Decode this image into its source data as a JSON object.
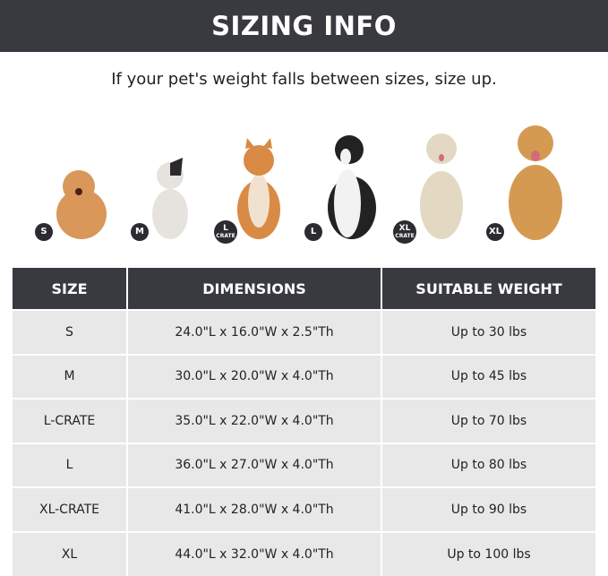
{
  "title": "SIZING INFO",
  "note": "If your pet's weight falls between sizes, size up.",
  "dogs": [
    {
      "badge": "S",
      "sub": "",
      "color": "#d9975a"
    },
    {
      "badge": "M",
      "sub": "",
      "color": "#e6e3df"
    },
    {
      "badge": "L",
      "sub": "CRATE",
      "color": "#d98a45"
    },
    {
      "badge": "L",
      "sub": "",
      "color": "#222222"
    },
    {
      "badge": "XL",
      "sub": "CRATE",
      "color": "#e3d8c2"
    },
    {
      "badge": "XL",
      "sub": "",
      "color": "#d49a52"
    }
  ],
  "table": {
    "headers": [
      "SIZE",
      "DIMENSIONS",
      "SUITABLE WEIGHT"
    ],
    "rows": [
      [
        "S",
        "24.0\"L x 16.0\"W x 2.5\"Th",
        "Up to 30 lbs"
      ],
      [
        "M",
        "30.0\"L x 20.0\"W x 4.0\"Th",
        "Up to 45 lbs"
      ],
      [
        "L-CRATE",
        "35.0\"L x 22.0\"W x 4.0\"Th",
        "Up to 70 lbs"
      ],
      [
        "L",
        "36.0\"L x 27.0\"W x 4.0\"Th",
        "Up to 80 lbs"
      ],
      [
        "XL-CRATE",
        "41.0\"L x 28.0\"W x 4.0\"Th",
        "Up to 90 lbs"
      ],
      [
        "XL",
        "44.0\"L x 32.0\"W x 4.0\"Th",
        "Up to 100 lbs"
      ]
    ]
  }
}
